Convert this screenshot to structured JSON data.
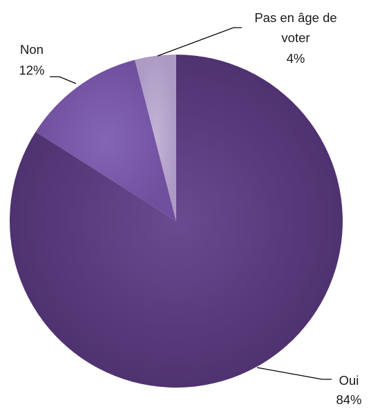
{
  "chart_data": {
    "type": "pie",
    "title": "",
    "legend": "none",
    "slices": [
      {
        "name": "Oui",
        "value": 84,
        "pct_label": "84%",
        "color": "#5b3c7d"
      },
      {
        "name": "Non",
        "value": 12,
        "pct_label": "12%",
        "color": "#7a5aaa"
      },
      {
        "name": "Pas en âge de voter",
        "value": 4,
        "pct_label": "4%",
        "color": "#b7a6cc"
      }
    ],
    "label_lines": {
      "oui": [
        "Oui"
      ],
      "non": [
        "Non"
      ],
      "pas": [
        "Pas en âge de",
        "voter"
      ]
    }
  }
}
